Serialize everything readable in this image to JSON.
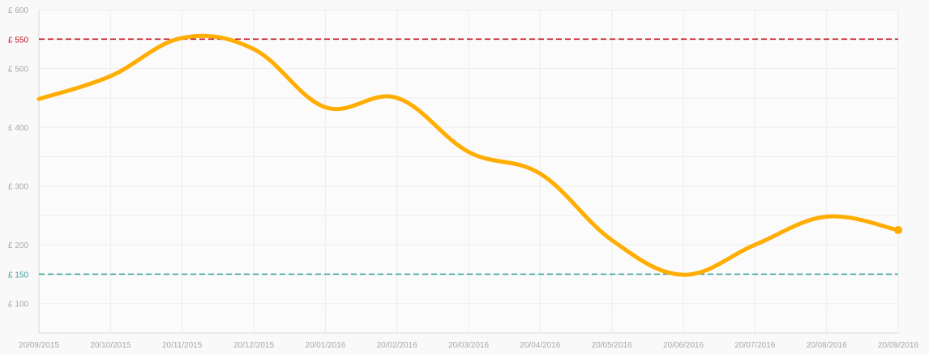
{
  "chart_data": {
    "type": "line",
    "currency_prefix": "£ ",
    "x": [
      "20/09/2015",
      "20/10/2015",
      "20/11/2015",
      "20/12/2015",
      "20/01/2016",
      "20/02/2016",
      "20/03/2016",
      "20/04/2016",
      "20/05/2016",
      "20/06/2016",
      "20/07/2016",
      "20/08/2016",
      "20/09/2016"
    ],
    "series": [
      {
        "color": "#ffad00",
        "values": [
          448,
          487,
          552,
          533,
          434,
          450,
          358,
          321,
          208,
          149,
          200,
          248,
          225
        ]
      }
    ],
    "y_ticks": [
      100,
      200,
      300,
      400,
      500,
      600
    ],
    "ylim": [
      50,
      600
    ],
    "reference_lines": [
      {
        "value": 550,
        "label": "£ 550",
        "color": "#c0141e"
      },
      {
        "value": 150,
        "label": "£ 150",
        "color": "#3aa39d"
      }
    ],
    "grid": true,
    "end_marker": true
  }
}
